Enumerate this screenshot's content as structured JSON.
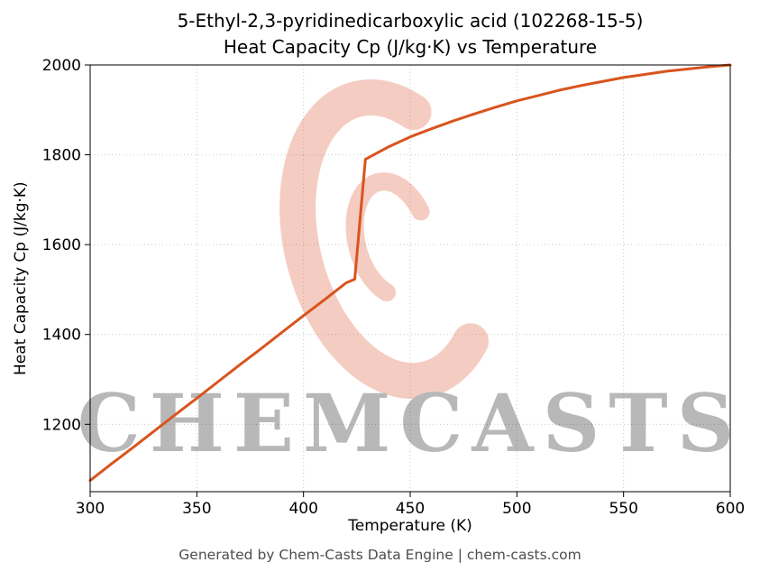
{
  "figure": {
    "title_line1": "5-Ethyl-2,3-pyridinedicarboxylic acid (102268-15-5)",
    "title_line2": "Heat Capacity Cp (J/kg·K) vs Temperature",
    "xlabel": "Temperature (K)",
    "ylabel": "Heat Capacity Cp (J/kg·K)"
  },
  "watermark": {
    "text": "CHEMCASTS",
    "color": "#d84a20",
    "opacity": 0.28
  },
  "footer": {
    "text": "Generated by Chem-Casts Data Engine | chem-casts.com"
  },
  "chart_data": {
    "type": "line",
    "title": "5-Ethyl-2,3-pyridinedicarboxylic acid (102268-15-5) — Heat Capacity Cp (J/kg·K) vs Temperature",
    "xlabel": "Temperature (K)",
    "ylabel": "Heat Capacity Cp (J/kg·K)",
    "xlim": [
      300,
      600
    ],
    "ylim": [
      1050,
      2000
    ],
    "xticks": [
      300,
      350,
      400,
      450,
      500,
      550,
      600
    ],
    "yticks": [
      1200,
      1400,
      1600,
      1800,
      2000
    ],
    "grid": true,
    "legend": false,
    "line_color": "#d9541e",
    "line_width": 3,
    "series": [
      {
        "name": "Heat Capacity Cp",
        "x": [
          300,
          310,
          320,
          330,
          340,
          350,
          360,
          370,
          380,
          390,
          400,
          410,
          420,
          424,
          429,
          440,
          450,
          460,
          470,
          480,
          490,
          500,
          510,
          520,
          530,
          540,
          550,
          560,
          570,
          580,
          590,
          600
        ],
        "y": [
          1075,
          1112,
          1148,
          1185,
          1222,
          1258,
          1295,
          1332,
          1368,
          1405,
          1442,
          1478,
          1515,
          1523,
          1790,
          1818,
          1840,
          1858,
          1875,
          1891,
          1906,
          1920,
          1932,
          1944,
          1954,
          1963,
          1972,
          1979,
          1986,
          1991,
          1996,
          2000
        ]
      }
    ]
  }
}
